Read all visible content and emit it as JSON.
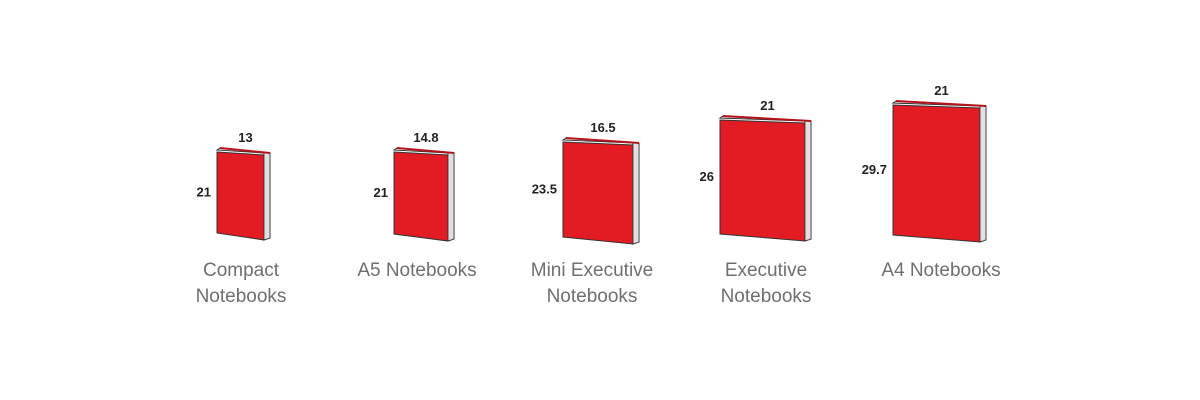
{
  "colors": {
    "cover": "#e31b23",
    "cover_edge": "#b5121a",
    "pages": "#ffffff",
    "outline": "#333333",
    "dimension_text": "#222222",
    "label_text": "#6f6f6f"
  },
  "notebooks": [
    {
      "label_lines": [
        "Compact",
        "Notebooks"
      ],
      "width": "13",
      "height": "21"
    },
    {
      "label_lines": [
        "A5 Notebooks"
      ],
      "width": "14.8",
      "height": "21"
    },
    {
      "label_lines": [
        "Mini Executive",
        "Notebooks"
      ],
      "width": "16.5",
      "height": "23.5"
    },
    {
      "label_lines": [
        "Executive",
        "Notebooks"
      ],
      "width": "21",
      "height": "26"
    },
    {
      "label_lines": [
        "A4 Notebooks"
      ],
      "width": "21",
      "height": "29.7"
    }
  ]
}
